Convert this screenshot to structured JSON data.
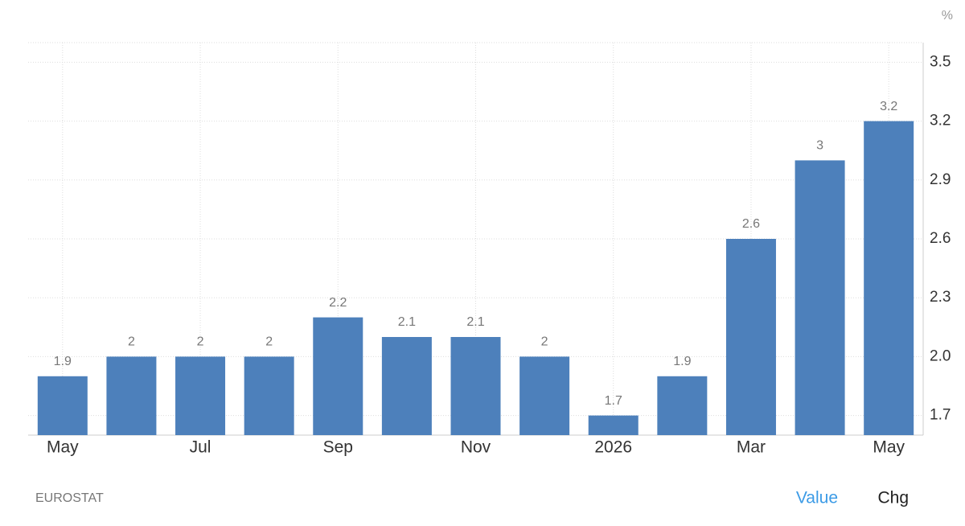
{
  "chart_data": {
    "type": "bar",
    "unit": "%",
    "categories": [
      "May",
      null,
      "Jul",
      null,
      "Sep",
      null,
      "Nov",
      null,
      "2026",
      null,
      "Mar",
      null,
      "May"
    ],
    "values": [
      1.9,
      2,
      2,
      2,
      2.2,
      2.1,
      2.1,
      2,
      1.7,
      1.9,
      2.6,
      3,
      3.2
    ],
    "color": "#4d80bb",
    "ylim": [
      1.6,
      3.6
    ],
    "yticks": [
      1.7,
      {
        "value": 2,
        "label": "2.0"
      },
      2.3,
      2.6,
      2.9,
      3.2,
      3.5
    ],
    "grid": true,
    "source": "EUROSTAT",
    "controls": [
      "Value",
      "Chg"
    ]
  }
}
